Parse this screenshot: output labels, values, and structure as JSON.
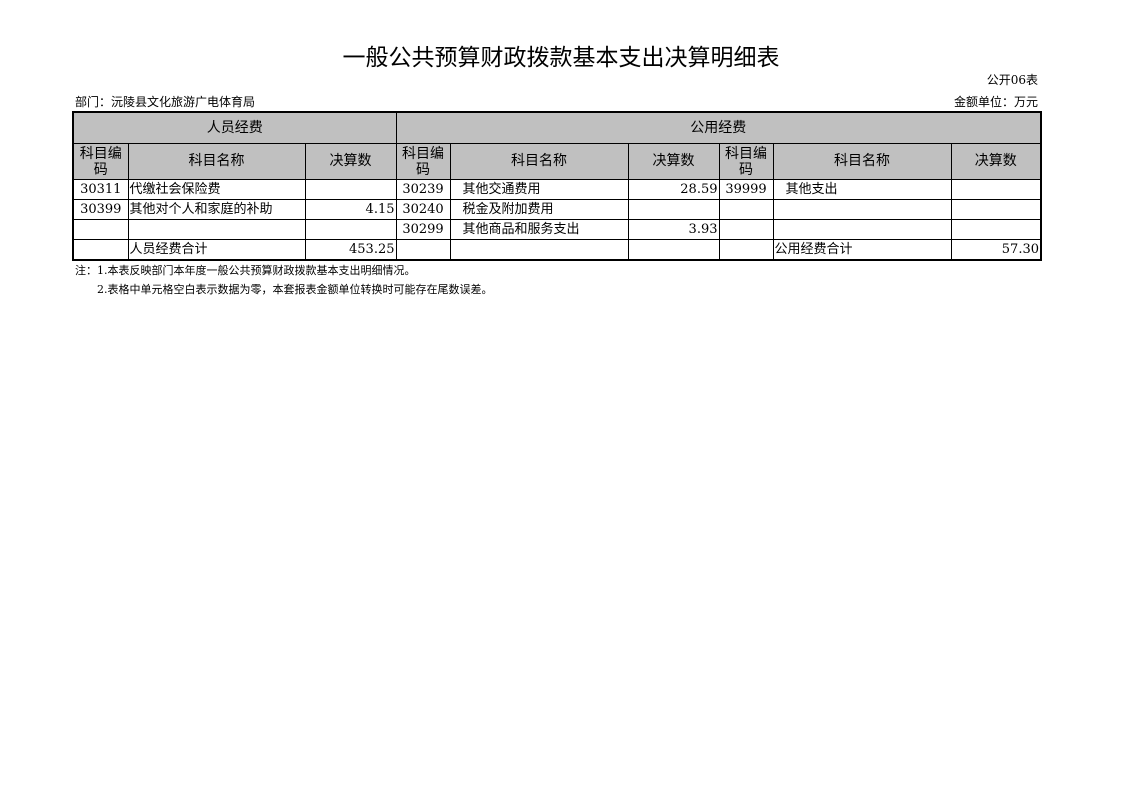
{
  "title": "一般公共预算财政拨款基本支出决算明细表",
  "table_no": "公开06表",
  "department": "部门：沅陵县文化旅游广电体育局",
  "unit": "金额单位：万元",
  "groups": {
    "personnel": "人员经费",
    "public": "公用经费"
  },
  "headers": {
    "code": "科目编码",
    "name": "科目名称",
    "amount": "决算数"
  },
  "rows": [
    [
      "30311",
      "代缴社会保险费",
      "",
      "30239",
      "其他交通费用",
      "28.59",
      "39999",
      "其他支出",
      ""
    ],
    [
      "30399",
      "其他对个人和家庭的补助",
      "4.15",
      "30240",
      "税金及附加费用",
      "",
      "",
      "",
      ""
    ],
    [
      "",
      "",
      "",
      "30299",
      "其他商品和服务支出",
      "3.93",
      "",
      "",
      ""
    ],
    [
      "",
      "人员经费合计",
      "453.25",
      "",
      "",
      "",
      "",
      "公用经费合计",
      "57.30"
    ]
  ],
  "notes": [
    "注：1.本表反映部门本年度一般公共预算财政拨款基本支出明细情况。",
    "2.表格中单元格空白表示数据为零，本套报表金额单位转换时可能存在尾数误差。"
  ]
}
